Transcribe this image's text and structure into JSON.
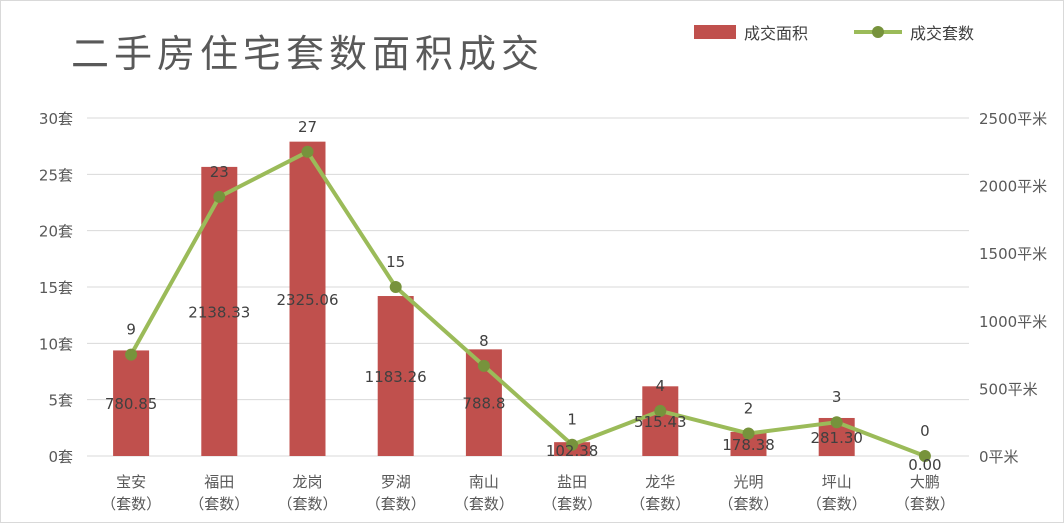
{
  "title": "二手房住宅套数面积成交",
  "legend": {
    "bar_label": "成交面积",
    "line_label": "成交套数"
  },
  "colors": {
    "bar": "#c0504d",
    "line": "#9bbb59",
    "marker": "#77933c",
    "grid": "#d9d9d9",
    "text": "#404040"
  },
  "chart_data": {
    "type": "bar",
    "title": "二手房住宅套数面积成交",
    "categories": [
      [
        "宝安",
        "（套数）"
      ],
      [
        "福田",
        "（套数）"
      ],
      [
        "龙岗",
        "（套数）"
      ],
      [
        "罗湖",
        "（套数）"
      ],
      [
        "南山",
        "（套数）"
      ],
      [
        "盐田",
        "（套数）"
      ],
      [
        "龙华",
        "（套数）"
      ],
      [
        "光明",
        "（套数）"
      ],
      [
        "坪山",
        "（套数）"
      ],
      [
        "大鹏",
        "（套数）"
      ]
    ],
    "series": [
      {
        "name": "成交面积",
        "type": "bar",
        "axis": "right",
        "unit": "平米",
        "values": [
          780.85,
          2138.33,
          2325.06,
          1183.26,
          788.8,
          102.38,
          515.43,
          178.38,
          281.3,
          0.0
        ],
        "data_labels": [
          "780.85",
          "2138.33",
          "2325.06",
          "1183.26",
          "788.8",
          "102.38",
          "515.43",
          "178.38",
          "281.30",
          "0.00"
        ]
      },
      {
        "name": "成交套数",
        "type": "line",
        "axis": "left",
        "unit": "套",
        "values": [
          9,
          23,
          27,
          15,
          8,
          1,
          4,
          2,
          3,
          0
        ],
        "data_labels": [
          "9",
          "23",
          "27",
          "15",
          "8",
          "1",
          "4",
          "2",
          "3",
          "0"
        ]
      }
    ],
    "y_left": {
      "lim": [
        0,
        30
      ],
      "ticks": [
        0,
        5,
        10,
        15,
        20,
        25,
        30
      ],
      "tick_labels": [
        "0套",
        "5套",
        "10套",
        "15套",
        "20套",
        "25套",
        "30套"
      ]
    },
    "y_right": {
      "lim": [
        0,
        2500
      ],
      "ticks": [
        0,
        500,
        1000,
        1500,
        2000,
        2500
      ],
      "tick_labels": [
        "0平米",
        "500平米",
        "1000平米",
        "1500平米",
        "2000平米",
        "2500平米"
      ]
    },
    "grid": true,
    "legend_position": "top-right"
  }
}
